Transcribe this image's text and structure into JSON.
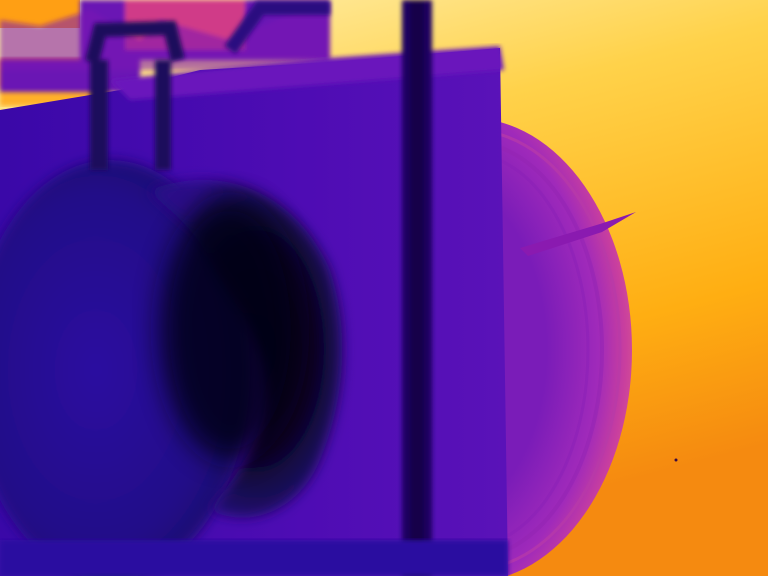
{
  "image": {
    "kind": "thermal-infrared-photo",
    "palette": "ironbow",
    "colors": {
      "hot": "#ffe680",
      "warm": "#ffb100",
      "mid_warm": "#f07a1a",
      "magenta": "#c53aa8",
      "violet": "#7a1fb4",
      "deep_violet": "#4a0aa8",
      "navy": "#1a0a6a",
      "cold": "#05021a"
    }
  }
}
